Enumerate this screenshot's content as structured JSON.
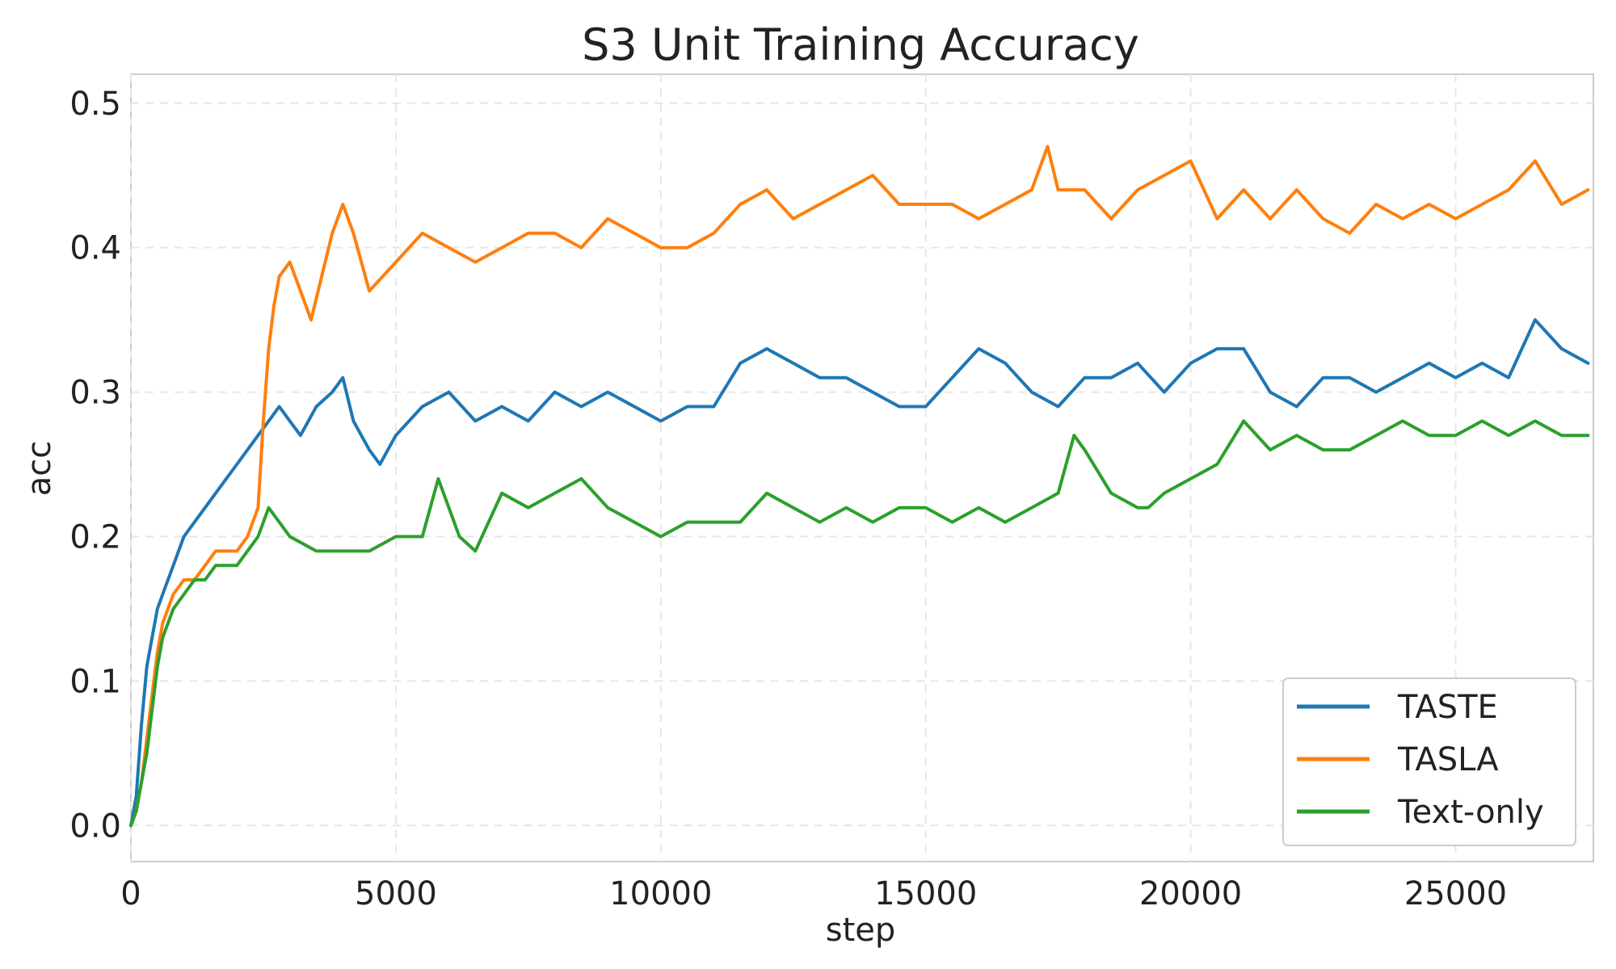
{
  "chart_data": {
    "type": "line",
    "title": "S3 Unit Training Accuracy",
    "xlabel": "step",
    "ylabel": "acc",
    "xlim": [
      0,
      27600
    ],
    "ylim": [
      -0.025,
      0.52
    ],
    "xticks": [
      0,
      5000,
      10000,
      15000,
      20000,
      25000
    ],
    "yticks": [
      0.0,
      0.1,
      0.2,
      0.3,
      0.4,
      0.5
    ],
    "xtick_labels": [
      "0",
      "5000",
      "10000",
      "15000",
      "20000",
      "25000"
    ],
    "ytick_labels": [
      "0.0",
      "0.1",
      "0.2",
      "0.3",
      "0.4",
      "0.5"
    ],
    "grid": true,
    "legend_position": "lower-right",
    "series": [
      {
        "name": "TASTE",
        "color": "#1f77b4",
        "x": [
          0,
          100,
          200,
          300,
          400,
          500,
          600,
          700,
          800,
          900,
          1000,
          1200,
          1400,
          1600,
          1800,
          2000,
          2200,
          2400,
          2600,
          2800,
          3000,
          3200,
          3500,
          3800,
          4000,
          4200,
          4500,
          4700,
          5000,
          5500,
          6000,
          6500,
          7000,
          7500,
          8000,
          8500,
          9000,
          9500,
          10000,
          10500,
          11000,
          11500,
          12000,
          12500,
          13000,
          13500,
          14000,
          14500,
          15000,
          15500,
          16000,
          16500,
          17000,
          17500,
          18000,
          18500,
          19000,
          19500,
          20000,
          20500,
          21000,
          21500,
          22000,
          22500,
          23000,
          23500,
          24000,
          24500,
          25000,
          25500,
          26000,
          26500,
          27000,
          27500
        ],
        "y": [
          0.0,
          0.02,
          0.07,
          0.11,
          0.13,
          0.15,
          0.16,
          0.17,
          0.18,
          0.19,
          0.2,
          0.21,
          0.22,
          0.23,
          0.24,
          0.25,
          0.26,
          0.27,
          0.28,
          0.29,
          0.28,
          0.27,
          0.29,
          0.3,
          0.31,
          0.28,
          0.26,
          0.25,
          0.27,
          0.29,
          0.3,
          0.28,
          0.29,
          0.28,
          0.3,
          0.29,
          0.3,
          0.29,
          0.28,
          0.29,
          0.29,
          0.32,
          0.33,
          0.32,
          0.31,
          0.31,
          0.3,
          0.29,
          0.29,
          0.31,
          0.33,
          0.32,
          0.3,
          0.29,
          0.31,
          0.31,
          0.32,
          0.3,
          0.32,
          0.33,
          0.33,
          0.3,
          0.29,
          0.31,
          0.31,
          0.3,
          0.31,
          0.32,
          0.31,
          0.32,
          0.31,
          0.35,
          0.33,
          0.32
        ]
      },
      {
        "name": "TASLA",
        "color": "#ff7f0e",
        "x": [
          0,
          100,
          200,
          300,
          400,
          500,
          600,
          700,
          800,
          1000,
          1200,
          1400,
          1600,
          1800,
          2000,
          2200,
          2400,
          2500,
          2600,
          2700,
          2800,
          3000,
          3200,
          3400,
          3600,
          3800,
          4000,
          4200,
          4500,
          5000,
          5500,
          6000,
          6500,
          7000,
          7500,
          8000,
          8500,
          9000,
          9500,
          10000,
          10500,
          11000,
          11500,
          12000,
          12500,
          13000,
          13500,
          14000,
          14500,
          15000,
          15500,
          16000,
          16500,
          17000,
          17300,
          17500,
          18000,
          18500,
          19000,
          19500,
          20000,
          20500,
          21000,
          21500,
          22000,
          22500,
          23000,
          23500,
          24000,
          24500,
          25000,
          25500,
          26000,
          26500,
          27000,
          27500
        ],
        "y": [
          0.0,
          0.01,
          0.03,
          0.06,
          0.09,
          0.12,
          0.14,
          0.15,
          0.16,
          0.17,
          0.17,
          0.18,
          0.19,
          0.19,
          0.19,
          0.2,
          0.22,
          0.28,
          0.33,
          0.36,
          0.38,
          0.39,
          0.37,
          0.35,
          0.38,
          0.41,
          0.43,
          0.41,
          0.37,
          0.39,
          0.41,
          0.4,
          0.39,
          0.4,
          0.41,
          0.41,
          0.4,
          0.42,
          0.41,
          0.4,
          0.4,
          0.41,
          0.43,
          0.44,
          0.42,
          0.43,
          0.44,
          0.45,
          0.43,
          0.43,
          0.43,
          0.42,
          0.43,
          0.44,
          0.47,
          0.44,
          0.44,
          0.42,
          0.44,
          0.45,
          0.46,
          0.42,
          0.44,
          0.42,
          0.44,
          0.42,
          0.41,
          0.43,
          0.42,
          0.43,
          0.42,
          0.43,
          0.44,
          0.46,
          0.43,
          0.44
        ]
      },
      {
        "name": "Text-only",
        "color": "#2ca02c",
        "x": [
          0,
          100,
          200,
          300,
          400,
          500,
          600,
          700,
          800,
          1000,
          1200,
          1400,
          1600,
          1800,
          2000,
          2200,
          2400,
          2600,
          2800,
          3000,
          3500,
          4000,
          4500,
          5000,
          5500,
          5800,
          6200,
          6500,
          7000,
          7500,
          8000,
          8500,
          9000,
          9500,
          10000,
          10500,
          11000,
          11500,
          12000,
          12500,
          13000,
          13500,
          14000,
          14500,
          15000,
          15500,
          16000,
          16500,
          17000,
          17500,
          17800,
          18000,
          18500,
          19000,
          19200,
          19500,
          20000,
          20500,
          21000,
          21500,
          22000,
          22500,
          23000,
          23500,
          24000,
          24500,
          25000,
          25500,
          26000,
          26500,
          27000,
          27500
        ],
        "y": [
          0.0,
          0.01,
          0.03,
          0.05,
          0.08,
          0.11,
          0.13,
          0.14,
          0.15,
          0.16,
          0.17,
          0.17,
          0.18,
          0.18,
          0.18,
          0.19,
          0.2,
          0.22,
          0.21,
          0.2,
          0.19,
          0.19,
          0.19,
          0.2,
          0.2,
          0.24,
          0.2,
          0.19,
          0.23,
          0.22,
          0.23,
          0.24,
          0.22,
          0.21,
          0.2,
          0.21,
          0.21,
          0.21,
          0.23,
          0.22,
          0.21,
          0.22,
          0.21,
          0.22,
          0.22,
          0.21,
          0.22,
          0.21,
          0.22,
          0.23,
          0.27,
          0.26,
          0.23,
          0.22,
          0.22,
          0.23,
          0.24,
          0.25,
          0.28,
          0.26,
          0.27,
          0.26,
          0.26,
          0.27,
          0.28,
          0.27,
          0.27,
          0.28,
          0.27,
          0.28,
          0.27,
          0.27
        ]
      }
    ]
  }
}
